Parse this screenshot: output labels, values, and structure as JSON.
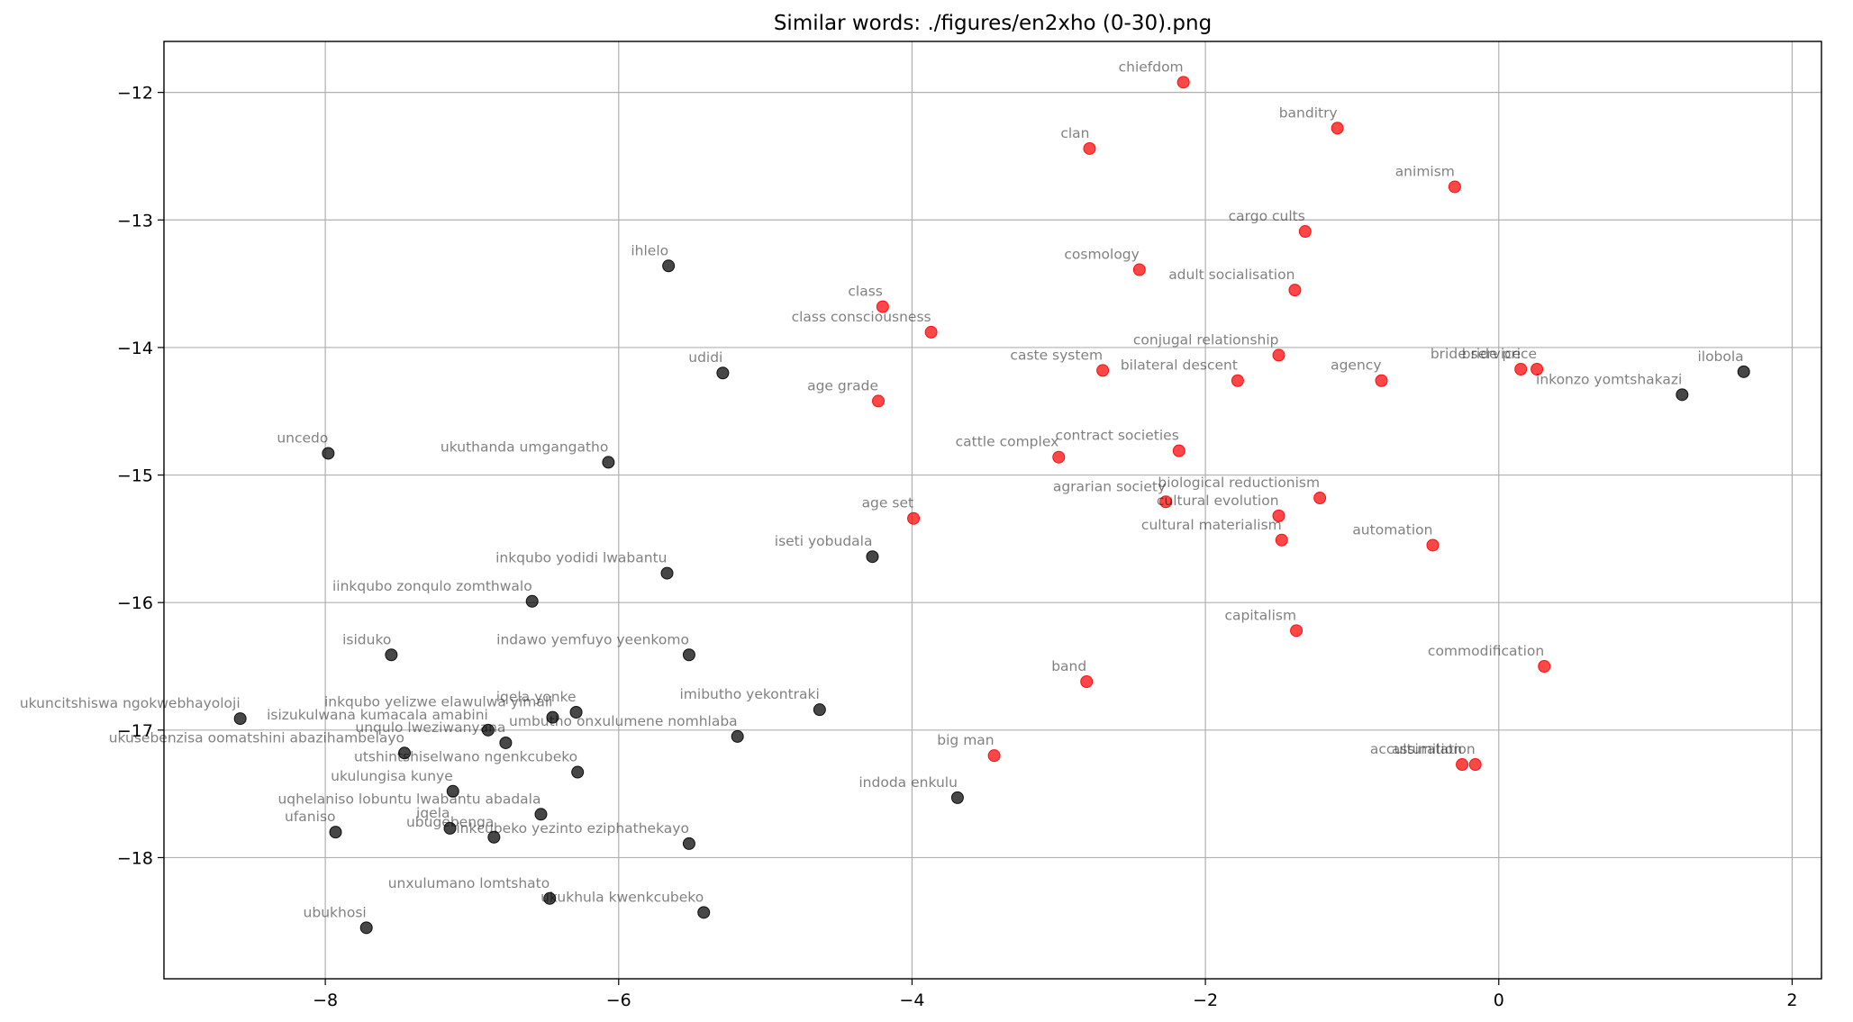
{
  "chart_data": {
    "type": "scatter",
    "title": "Similar words: ./figures/en2xho (0-30).png",
    "xlabel": "",
    "ylabel": "",
    "xlim": [
      -9.1,
      2.2
    ],
    "ylim": [
      -18.95,
      -11.6
    ],
    "xticks": [
      -8,
      -6,
      -4,
      -2,
      0,
      2
    ],
    "yticks": [
      -12,
      -13,
      -14,
      -15,
      -16,
      -17,
      -18
    ],
    "xtick_labels": [
      "−8",
      "−6",
      "−4",
      "−2",
      "0",
      "2"
    ],
    "ytick_labels": [
      "−12",
      "−13",
      "−14",
      "−15",
      "−16",
      "−17",
      "−18"
    ],
    "grid": true,
    "series": [
      {
        "color": "#ff0000",
        "points": [
          {
            "x": -2.15,
            "y": -11.92,
            "label": "chiefdom"
          },
          {
            "x": -2.79,
            "y": -12.44,
            "label": "clan"
          },
          {
            "x": -1.1,
            "y": -12.28,
            "label": "banditry"
          },
          {
            "x": -0.3,
            "y": -12.74,
            "label": "animism"
          },
          {
            "x": -1.32,
            "y": -13.09,
            "label": "cargo cults"
          },
          {
            "x": -2.45,
            "y": -13.39,
            "label": "cosmology"
          },
          {
            "x": -1.39,
            "y": -13.55,
            "label": "adult socialisation"
          },
          {
            "x": -4.2,
            "y": -13.68,
            "label": "class"
          },
          {
            "x": -3.87,
            "y": -13.88,
            "label": "class consciousness"
          },
          {
            "x": -1.5,
            "y": -14.06,
            "label": "conjugal relationship"
          },
          {
            "x": -2.7,
            "y": -14.18,
            "label": "caste system"
          },
          {
            "x": -1.78,
            "y": -14.26,
            "label": "bilateral descent"
          },
          {
            "x": -0.8,
            "y": -14.26,
            "label": "agency"
          },
          {
            "x": 0.15,
            "y": -14.17,
            "label": "bride service"
          },
          {
            "x": 0.26,
            "y": -14.17,
            "label": "bride price"
          },
          {
            "x": -4.23,
            "y": -14.42,
            "label": "age grade"
          },
          {
            "x": -2.18,
            "y": -14.81,
            "label": "contract societies"
          },
          {
            "x": -3.0,
            "y": -14.86,
            "label": "cattle complex"
          },
          {
            "x": -1.22,
            "y": -15.18,
            "label": "biological reductionism"
          },
          {
            "x": -2.27,
            "y": -15.21,
            "label": "agrarian society"
          },
          {
            "x": -1.5,
            "y": -15.32,
            "label": "cultural evolution"
          },
          {
            "x": -3.99,
            "y": -15.34,
            "label": "age set"
          },
          {
            "x": -1.48,
            "y": -15.51,
            "label": "cultural materialism"
          },
          {
            "x": -0.45,
            "y": -15.55,
            "label": "automation"
          },
          {
            "x": -1.38,
            "y": -16.22,
            "label": "capitalism"
          },
          {
            "x": 0.31,
            "y": -16.5,
            "label": "commodification"
          },
          {
            "x": -2.81,
            "y": -16.62,
            "label": "band"
          },
          {
            "x": -3.44,
            "y": -17.2,
            "label": "big man"
          },
          {
            "x": -0.25,
            "y": -17.27,
            "label": "acculturation"
          },
          {
            "x": -0.16,
            "y": -17.27,
            "label": "assimilation"
          }
        ]
      },
      {
        "color": "#000000",
        "points": [
          {
            "x": -5.66,
            "y": -13.36,
            "label": "ihlelo"
          },
          {
            "x": -5.29,
            "y": -14.2,
            "label": "udidi"
          },
          {
            "x": 1.67,
            "y": -14.19,
            "label": "ilobola"
          },
          {
            "x": 1.25,
            "y": -14.37,
            "label": "inkonzo yomtshakazi"
          },
          {
            "x": -7.98,
            "y": -14.83,
            "label": "uncedo"
          },
          {
            "x": -6.07,
            "y": -14.9,
            "label": "ukuthanda umgangatho"
          },
          {
            "x": -4.27,
            "y": -15.64,
            "label": "iseti yobudala"
          },
          {
            "x": -5.67,
            "y": -15.77,
            "label": "inkqubo yodidi lwabantu"
          },
          {
            "x": -6.59,
            "y": -15.99,
            "label": "iinkqubo zonqulo zomthwalo"
          },
          {
            "x": -7.55,
            "y": -16.41,
            "label": "isiduko"
          },
          {
            "x": -5.52,
            "y": -16.41,
            "label": "indawo yemfuyo yeenkomo"
          },
          {
            "x": -4.63,
            "y": -16.84,
            "label": "imibutho yekontraki"
          },
          {
            "x": -8.58,
            "y": -16.91,
            "label": "ukuncitshiswa ngokwebhayoloji"
          },
          {
            "x": -6.45,
            "y": -16.9,
            "label": "inkqubo yelizwe elawulwa yimali"
          },
          {
            "x": -6.29,
            "y": -16.86,
            "label": "iqela yonke"
          },
          {
            "x": -6.89,
            "y": -17.0,
            "label": "isizukulwana kumacala amabini"
          },
          {
            "x": -5.19,
            "y": -17.05,
            "label": "umbutho onxulumene nomhlaba"
          },
          {
            "x": -6.77,
            "y": -17.1,
            "label": "unqulo lweziwanyana"
          },
          {
            "x": -7.46,
            "y": -17.18,
            "label": "ukusebenzisa oomatshini abazihambelayo"
          },
          {
            "x": -6.28,
            "y": -17.33,
            "label": "utshintshiselwano ngenkcubeko"
          },
          {
            "x": -7.13,
            "y": -17.48,
            "label": "ukulungisa kunye"
          },
          {
            "x": -3.69,
            "y": -17.53,
            "label": "indoda enkulu"
          },
          {
            "x": -6.53,
            "y": -17.66,
            "label": "uqhelaniso lobuntu lwabantu abadala"
          },
          {
            "x": -7.93,
            "y": -17.8,
            "label": "ufaniso"
          },
          {
            "x": -7.15,
            "y": -17.77,
            "label": "iqela"
          },
          {
            "x": -6.85,
            "y": -17.84,
            "label": "ubugebenga"
          },
          {
            "x": -5.52,
            "y": -17.89,
            "label": "inkcubeko yezinto eziphathekayo"
          },
          {
            "x": -6.47,
            "y": -18.32,
            "label": "unxulumano lomtshato"
          },
          {
            "x": -5.42,
            "y": -18.43,
            "label": "ukukhula kwenkcubeko"
          },
          {
            "x": -7.72,
            "y": -18.55,
            "label": "ubukhosi"
          }
        ]
      }
    ]
  }
}
